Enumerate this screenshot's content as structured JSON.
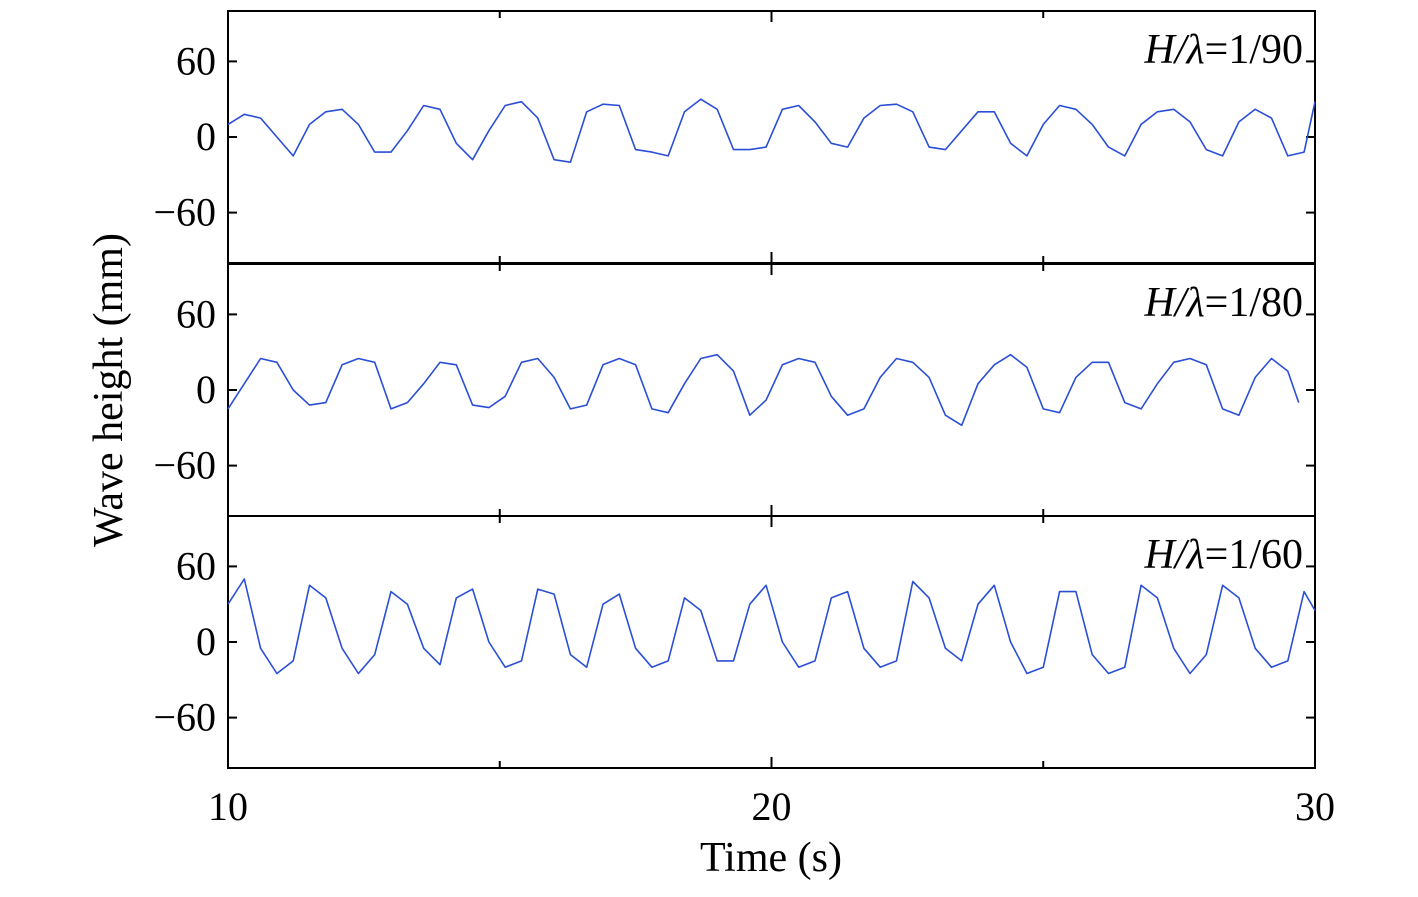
{
  "chart_data": {
    "type": "line",
    "xlabel": "Time (s)",
    "ylabel": "Wave height (mm)",
    "xlim": [
      10,
      30
    ],
    "x_ticks": [
      10,
      20,
      30
    ],
    "x_minor_ticks": [
      15,
      20,
      25
    ],
    "line_color": "#2a4fd6",
    "grid": false,
    "panels": [
      {
        "label_var": "H/λ",
        "label_value": "=1/90",
        "ylim": [
          -100,
          100
        ],
        "y_ticks": [
          60,
          0,
          -60
        ],
        "y_tick_labels": [
          "60",
          "0",
          "−60"
        ],
        "series": [
          {
            "x": [
              10.0,
              10.3,
              10.6,
              10.9,
              11.2,
              11.5,
              11.8,
              12.1,
              12.4,
              12.7,
              13.0,
              13.3,
              13.6,
              13.9,
              14.2,
              14.5,
              14.8,
              15.1,
              15.4,
              15.7,
              16.0,
              16.3,
              16.6,
              16.9,
              17.2,
              17.5,
              17.8,
              18.1,
              18.4,
              18.7,
              19.0,
              19.3,
              19.6,
              19.9,
              20.2,
              20.5,
              20.8,
              21.1,
              21.4,
              21.7,
              22.0,
              22.3,
              22.6,
              22.9,
              23.2,
              23.5,
              23.8,
              24.1,
              24.4,
              24.7,
              25.0,
              25.3,
              25.6,
              25.9,
              26.2,
              26.5,
              26.8,
              27.1,
              27.4,
              27.7,
              28.0,
              28.3,
              28.6,
              28.9,
              29.2,
              29.5,
              29.8,
              30.0
            ],
            "y": [
              10,
              18,
              15,
              0,
              -15,
              10,
              20,
              22,
              10,
              -12,
              -12,
              5,
              25,
              22,
              -5,
              -18,
              5,
              25,
              28,
              15,
              -18,
              -20,
              20,
              26,
              25,
              -10,
              -12,
              -15,
              20,
              30,
              22,
              -10,
              -10,
              -8,
              22,
              25,
              12,
              -5,
              -8,
              15,
              25,
              26,
              20,
              -8,
              -10,
              5,
              20,
              20,
              -5,
              -15,
              10,
              25,
              22,
              10,
              -8,
              -15,
              10,
              20,
              22,
              12,
              -10,
              -15,
              12,
              22,
              15,
              -15,
              -12,
              28
            ]
          }
        ]
      },
      {
        "label_var": "H/λ",
        "label_value": "=1/80",
        "ylim": [
          -100,
          100
        ],
        "y_ticks": [
          60,
          0,
          -60
        ],
        "y_tick_labels": [
          "60",
          "0",
          "−60"
        ],
        "series": [
          {
            "x": [
              10.0,
              10.3,
              10.6,
              10.9,
              11.2,
              11.5,
              11.8,
              12.1,
              12.4,
              12.7,
              13.0,
              13.3,
              13.6,
              13.9,
              14.2,
              14.5,
              14.8,
              15.1,
              15.4,
              15.7,
              16.0,
              16.3,
              16.6,
              16.9,
              17.2,
              17.5,
              17.8,
              18.1,
              18.4,
              18.7,
              19.0,
              19.3,
              19.6,
              19.9,
              20.2,
              20.5,
              20.8,
              21.1,
              21.4,
              21.7,
              22.0,
              22.3,
              22.6,
              22.9,
              23.2,
              23.5,
              23.8,
              24.1,
              24.4,
              24.7,
              25.0,
              25.3,
              25.6,
              25.9,
              26.2,
              26.5,
              26.8,
              27.1,
              27.4,
              27.7,
              28.0,
              28.3,
              28.6,
              28.9,
              29.2,
              29.5,
              29.7
            ],
            "y": [
              -15,
              5,
              25,
              22,
              0,
              -12,
              -10,
              20,
              25,
              22,
              -15,
              -10,
              5,
              22,
              20,
              -12,
              -14,
              -5,
              22,
              25,
              10,
              -15,
              -12,
              20,
              25,
              20,
              -15,
              -18,
              5,
              25,
              28,
              15,
              -20,
              -8,
              20,
              25,
              22,
              -5,
              -20,
              -15,
              10,
              25,
              22,
              10,
              -20,
              -28,
              5,
              20,
              28,
              18,
              -15,
              -18,
              10,
              22,
              22,
              -10,
              -15,
              5,
              22,
              25,
              20,
              -15,
              -20,
              10,
              25,
              15,
              -10
            ]
          }
        ]
      },
      {
        "label_var": "H/λ",
        "label_value": "=1/60",
        "ylim": [
          -100,
          100
        ],
        "y_ticks": [
          60,
          0,
          -60
        ],
        "y_tick_labels": [
          "60",
          "0",
          "−60"
        ],
        "series": [
          {
            "x": [
              10.0,
              10.3,
              10.6,
              10.9,
              11.2,
              11.5,
              11.8,
              12.1,
              12.4,
              12.7,
              13.0,
              13.3,
              13.6,
              13.9,
              14.2,
              14.5,
              14.8,
              15.1,
              15.4,
              15.7,
              16.0,
              16.3,
              16.6,
              16.9,
              17.2,
              17.5,
              17.8,
              18.1,
              18.4,
              18.7,
              19.0,
              19.3,
              19.6,
              19.9,
              20.2,
              20.5,
              20.8,
              21.1,
              21.4,
              21.7,
              22.0,
              22.3,
              22.6,
              22.9,
              23.2,
              23.5,
              23.8,
              24.1,
              24.4,
              24.7,
              25.0,
              25.3,
              25.6,
              25.9,
              26.2,
              26.5,
              26.8,
              27.1,
              27.4,
              27.7,
              28.0,
              28.3,
              28.6,
              28.9,
              29.2,
              29.5,
              29.8,
              30.0
            ],
            "y": [
              30,
              50,
              -5,
              -25,
              -15,
              45,
              35,
              -5,
              -25,
              -10,
              40,
              30,
              -5,
              -18,
              35,
              42,
              0,
              -20,
              -15,
              42,
              38,
              -10,
              -20,
              30,
              38,
              -5,
              -20,
              -15,
              35,
              25,
              -15,
              -15,
              30,
              45,
              0,
              -20,
              -15,
              35,
              40,
              -5,
              -20,
              -15,
              48,
              35,
              -5,
              -15,
              30,
              45,
              0,
              -25,
              -20,
              40,
              40,
              -10,
              -25,
              -20,
              45,
              35,
              -5,
              -25,
              -10,
              45,
              35,
              -5,
              -20,
              -15,
              40,
              25
            ]
          }
        ]
      }
    ]
  }
}
